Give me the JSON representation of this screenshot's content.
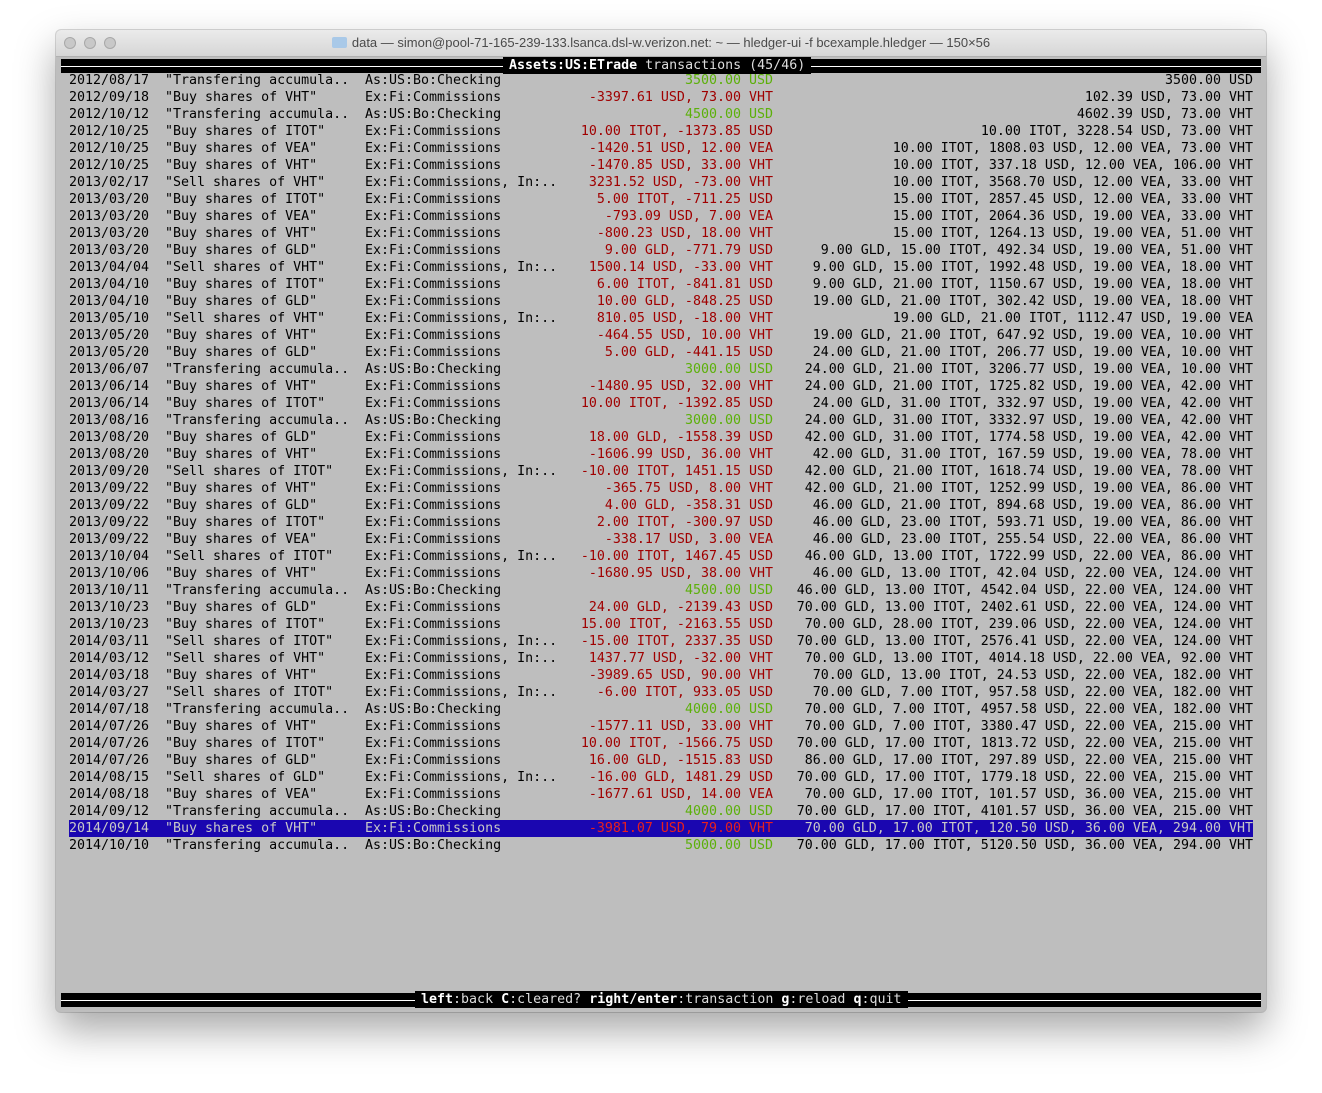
{
  "window": {
    "title": "data — simon@pool-71-165-239-133.lsanca.dsl-w.verizon.net: ~ — hledger-ui -f bcexample.hledger — 150×56"
  },
  "header": {
    "account": "Assets:US:ETrade",
    "suffix": " transactions (45/46)"
  },
  "colors": {
    "background": "#bebebe",
    "negative": "#a00000",
    "positive": "#5cb00a",
    "selection": "#1a06b0"
  },
  "selected_index": 44,
  "rows": [
    {
      "date": "2012/08/17",
      "desc": "\"Transfering accumula..",
      "acct": "As:US:Bo:Checking",
      "amt": "3500.00 USD",
      "sign": "pos",
      "bal": "3500.00 USD"
    },
    {
      "date": "2012/09/18",
      "desc": "\"Buy shares of VHT\"",
      "acct": "Ex:Fi:Commissions",
      "amt": "-3397.61 USD, 73.00 VHT",
      "sign": "neg",
      "bal": "102.39 USD, 73.00 VHT"
    },
    {
      "date": "2012/10/12",
      "desc": "\"Transfering accumula..",
      "acct": "As:US:Bo:Checking",
      "amt": "4500.00 USD",
      "sign": "pos",
      "bal": "4602.39 USD, 73.00 VHT"
    },
    {
      "date": "2012/10/25",
      "desc": "\"Buy shares of ITOT\"",
      "acct": "Ex:Fi:Commissions",
      "amt": "10.00 ITOT, -1373.85 USD",
      "sign": "neg",
      "bal": "10.00 ITOT, 3228.54 USD, 73.00 VHT"
    },
    {
      "date": "2012/10/25",
      "desc": "\"Buy shares of VEA\"",
      "acct": "Ex:Fi:Commissions",
      "amt": "-1420.51 USD, 12.00 VEA",
      "sign": "neg",
      "bal": "10.00 ITOT, 1808.03 USD, 12.00 VEA, 73.00 VHT"
    },
    {
      "date": "2012/10/25",
      "desc": "\"Buy shares of VHT\"",
      "acct": "Ex:Fi:Commissions",
      "amt": "-1470.85 USD, 33.00 VHT",
      "sign": "neg",
      "bal": "10.00 ITOT, 337.18 USD, 12.00 VEA, 106.00 VHT"
    },
    {
      "date": "2013/02/17",
      "desc": "\"Sell shares of VHT\"",
      "acct": "Ex:Fi:Commissions, In:..",
      "amt": "3231.52 USD, -73.00 VHT",
      "sign": "neg",
      "bal": "10.00 ITOT, 3568.70 USD, 12.00 VEA, 33.00 VHT"
    },
    {
      "date": "2013/03/20",
      "desc": "\"Buy shares of ITOT\"",
      "acct": "Ex:Fi:Commissions",
      "amt": "5.00 ITOT, -711.25 USD",
      "sign": "neg",
      "bal": "15.00 ITOT, 2857.45 USD, 12.00 VEA, 33.00 VHT"
    },
    {
      "date": "2013/03/20",
      "desc": "\"Buy shares of VEA\"",
      "acct": "Ex:Fi:Commissions",
      "amt": "-793.09 USD, 7.00 VEA",
      "sign": "neg",
      "bal": "15.00 ITOT, 2064.36 USD, 19.00 VEA, 33.00 VHT"
    },
    {
      "date": "2013/03/20",
      "desc": "\"Buy shares of VHT\"",
      "acct": "Ex:Fi:Commissions",
      "amt": "-800.23 USD, 18.00 VHT",
      "sign": "neg",
      "bal": "15.00 ITOT, 1264.13 USD, 19.00 VEA, 51.00 VHT"
    },
    {
      "date": "2013/03/20",
      "desc": "\"Buy shares of GLD\"",
      "acct": "Ex:Fi:Commissions",
      "amt": "9.00 GLD, -771.79 USD",
      "sign": "neg",
      "bal": "9.00 GLD, 15.00 ITOT, 492.34 USD, 19.00 VEA, 51.00 VHT"
    },
    {
      "date": "2013/04/04",
      "desc": "\"Sell shares of VHT\"",
      "acct": "Ex:Fi:Commissions, In:..",
      "amt": "1500.14 USD, -33.00 VHT",
      "sign": "neg",
      "bal": "9.00 GLD, 15.00 ITOT, 1992.48 USD, 19.00 VEA, 18.00 VHT"
    },
    {
      "date": "2013/04/10",
      "desc": "\"Buy shares of ITOT\"",
      "acct": "Ex:Fi:Commissions",
      "amt": "6.00 ITOT, -841.81 USD",
      "sign": "neg",
      "bal": "9.00 GLD, 21.00 ITOT, 1150.67 USD, 19.00 VEA, 18.00 VHT"
    },
    {
      "date": "2013/04/10",
      "desc": "\"Buy shares of GLD\"",
      "acct": "Ex:Fi:Commissions",
      "amt": "10.00 GLD, -848.25 USD",
      "sign": "neg",
      "bal": "19.00 GLD, 21.00 ITOT, 302.42 USD, 19.00 VEA, 18.00 VHT"
    },
    {
      "date": "2013/05/10",
      "desc": "\"Sell shares of VHT\"",
      "acct": "Ex:Fi:Commissions, In:..",
      "amt": "810.05 USD, -18.00 VHT",
      "sign": "neg",
      "bal": "19.00 GLD, 21.00 ITOT, 1112.47 USD, 19.00 VEA"
    },
    {
      "date": "2013/05/20",
      "desc": "\"Buy shares of VHT\"",
      "acct": "Ex:Fi:Commissions",
      "amt": "-464.55 USD, 10.00 VHT",
      "sign": "neg",
      "bal": "19.00 GLD, 21.00 ITOT, 647.92 USD, 19.00 VEA, 10.00 VHT"
    },
    {
      "date": "2013/05/20",
      "desc": "\"Buy shares of GLD\"",
      "acct": "Ex:Fi:Commissions",
      "amt": "5.00 GLD, -441.15 USD",
      "sign": "neg",
      "bal": "24.00 GLD, 21.00 ITOT, 206.77 USD, 19.00 VEA, 10.00 VHT"
    },
    {
      "date": "2013/06/07",
      "desc": "\"Transfering accumula..",
      "acct": "As:US:Bo:Checking",
      "amt": "3000.00 USD",
      "sign": "pos",
      "bal": "24.00 GLD, 21.00 ITOT, 3206.77 USD, 19.00 VEA, 10.00 VHT"
    },
    {
      "date": "2013/06/14",
      "desc": "\"Buy shares of VHT\"",
      "acct": "Ex:Fi:Commissions",
      "amt": "-1480.95 USD, 32.00 VHT",
      "sign": "neg",
      "bal": "24.00 GLD, 21.00 ITOT, 1725.82 USD, 19.00 VEA, 42.00 VHT"
    },
    {
      "date": "2013/06/14",
      "desc": "\"Buy shares of ITOT\"",
      "acct": "Ex:Fi:Commissions",
      "amt": "10.00 ITOT, -1392.85 USD",
      "sign": "neg",
      "bal": "24.00 GLD, 31.00 ITOT, 332.97 USD, 19.00 VEA, 42.00 VHT"
    },
    {
      "date": "2013/08/16",
      "desc": "\"Transfering accumula..",
      "acct": "As:US:Bo:Checking",
      "amt": "3000.00 USD",
      "sign": "pos",
      "bal": "24.00 GLD, 31.00 ITOT, 3332.97 USD, 19.00 VEA, 42.00 VHT"
    },
    {
      "date": "2013/08/20",
      "desc": "\"Buy shares of GLD\"",
      "acct": "Ex:Fi:Commissions",
      "amt": "18.00 GLD, -1558.39 USD",
      "sign": "neg",
      "bal": "42.00 GLD, 31.00 ITOT, 1774.58 USD, 19.00 VEA, 42.00 VHT"
    },
    {
      "date": "2013/08/20",
      "desc": "\"Buy shares of VHT\"",
      "acct": "Ex:Fi:Commissions",
      "amt": "-1606.99 USD, 36.00 VHT",
      "sign": "neg",
      "bal": "42.00 GLD, 31.00 ITOT, 167.59 USD, 19.00 VEA, 78.00 VHT"
    },
    {
      "date": "2013/09/20",
      "desc": "\"Sell shares of ITOT\"",
      "acct": "Ex:Fi:Commissions, In:..",
      "amt": "-10.00 ITOT, 1451.15 USD",
      "sign": "neg",
      "bal": "42.00 GLD, 21.00 ITOT, 1618.74 USD, 19.00 VEA, 78.00 VHT"
    },
    {
      "date": "2013/09/22",
      "desc": "\"Buy shares of VHT\"",
      "acct": "Ex:Fi:Commissions",
      "amt": "-365.75 USD, 8.00 VHT",
      "sign": "neg",
      "bal": "42.00 GLD, 21.00 ITOT, 1252.99 USD, 19.00 VEA, 86.00 VHT"
    },
    {
      "date": "2013/09/22",
      "desc": "\"Buy shares of GLD\"",
      "acct": "Ex:Fi:Commissions",
      "amt": "4.00 GLD, -358.31 USD",
      "sign": "neg",
      "bal": "46.00 GLD, 21.00 ITOT, 894.68 USD, 19.00 VEA, 86.00 VHT"
    },
    {
      "date": "2013/09/22",
      "desc": "\"Buy shares of ITOT\"",
      "acct": "Ex:Fi:Commissions",
      "amt": "2.00 ITOT, -300.97 USD",
      "sign": "neg",
      "bal": "46.00 GLD, 23.00 ITOT, 593.71 USD, 19.00 VEA, 86.00 VHT"
    },
    {
      "date": "2013/09/22",
      "desc": "\"Buy shares of VEA\"",
      "acct": "Ex:Fi:Commissions",
      "amt": "-338.17 USD, 3.00 VEA",
      "sign": "neg",
      "bal": "46.00 GLD, 23.00 ITOT, 255.54 USD, 22.00 VEA, 86.00 VHT"
    },
    {
      "date": "2013/10/04",
      "desc": "\"Sell shares of ITOT\"",
      "acct": "Ex:Fi:Commissions, In:..",
      "amt": "-10.00 ITOT, 1467.45 USD",
      "sign": "neg",
      "bal": "46.00 GLD, 13.00 ITOT, 1722.99 USD, 22.00 VEA, 86.00 VHT"
    },
    {
      "date": "2013/10/06",
      "desc": "\"Buy shares of VHT\"",
      "acct": "Ex:Fi:Commissions",
      "amt": "-1680.95 USD, 38.00 VHT",
      "sign": "neg",
      "bal": "46.00 GLD, 13.00 ITOT, 42.04 USD, 22.00 VEA, 124.00 VHT"
    },
    {
      "date": "2013/10/11",
      "desc": "\"Transfering accumula..",
      "acct": "As:US:Bo:Checking",
      "amt": "4500.00 USD",
      "sign": "pos",
      "bal": "46.00 GLD, 13.00 ITOT, 4542.04 USD, 22.00 VEA, 124.00 VHT"
    },
    {
      "date": "2013/10/23",
      "desc": "\"Buy shares of GLD\"",
      "acct": "Ex:Fi:Commissions",
      "amt": "24.00 GLD, -2139.43 USD",
      "sign": "neg",
      "bal": "70.00 GLD, 13.00 ITOT, 2402.61 USD, 22.00 VEA, 124.00 VHT"
    },
    {
      "date": "2013/10/23",
      "desc": "\"Buy shares of ITOT\"",
      "acct": "Ex:Fi:Commissions",
      "amt": "15.00 ITOT, -2163.55 USD",
      "sign": "neg",
      "bal": "70.00 GLD, 28.00 ITOT, 239.06 USD, 22.00 VEA, 124.00 VHT"
    },
    {
      "date": "2014/03/11",
      "desc": "\"Sell shares of ITOT\"",
      "acct": "Ex:Fi:Commissions, In:..",
      "amt": "-15.00 ITOT, 2337.35 USD",
      "sign": "neg",
      "bal": "70.00 GLD, 13.00 ITOT, 2576.41 USD, 22.00 VEA, 124.00 VHT"
    },
    {
      "date": "2014/03/12",
      "desc": "\"Sell shares of VHT\"",
      "acct": "Ex:Fi:Commissions, In:..",
      "amt": "1437.77 USD, -32.00 VHT",
      "sign": "neg",
      "bal": "70.00 GLD, 13.00 ITOT, 4014.18 USD, 22.00 VEA, 92.00 VHT"
    },
    {
      "date": "2014/03/18",
      "desc": "\"Buy shares of VHT\"",
      "acct": "Ex:Fi:Commissions",
      "amt": "-3989.65 USD, 90.00 VHT",
      "sign": "neg",
      "bal": "70.00 GLD, 13.00 ITOT, 24.53 USD, 22.00 VEA, 182.00 VHT"
    },
    {
      "date": "2014/03/27",
      "desc": "\"Sell shares of ITOT\"",
      "acct": "Ex:Fi:Commissions, In:..",
      "amt": "-6.00 ITOT, 933.05 USD",
      "sign": "neg",
      "bal": "70.00 GLD, 7.00 ITOT, 957.58 USD, 22.00 VEA, 182.00 VHT"
    },
    {
      "date": "2014/07/18",
      "desc": "\"Transfering accumula..",
      "acct": "As:US:Bo:Checking",
      "amt": "4000.00 USD",
      "sign": "pos",
      "bal": "70.00 GLD, 7.00 ITOT, 4957.58 USD, 22.00 VEA, 182.00 VHT"
    },
    {
      "date": "2014/07/26",
      "desc": "\"Buy shares of VHT\"",
      "acct": "Ex:Fi:Commissions",
      "amt": "-1577.11 USD, 33.00 VHT",
      "sign": "neg",
      "bal": "70.00 GLD, 7.00 ITOT, 3380.47 USD, 22.00 VEA, 215.00 VHT"
    },
    {
      "date": "2014/07/26",
      "desc": "\"Buy shares of ITOT\"",
      "acct": "Ex:Fi:Commissions",
      "amt": "10.00 ITOT, -1566.75 USD",
      "sign": "neg",
      "bal": "70.00 GLD, 17.00 ITOT, 1813.72 USD, 22.00 VEA, 215.00 VHT"
    },
    {
      "date": "2014/07/26",
      "desc": "\"Buy shares of GLD\"",
      "acct": "Ex:Fi:Commissions",
      "amt": "16.00 GLD, -1515.83 USD",
      "sign": "neg",
      "bal": "86.00 GLD, 17.00 ITOT, 297.89 USD, 22.00 VEA, 215.00 VHT"
    },
    {
      "date": "2014/08/15",
      "desc": "\"Sell shares of GLD\"",
      "acct": "Ex:Fi:Commissions, In:..",
      "amt": "-16.00 GLD, 1481.29 USD",
      "sign": "neg",
      "bal": "70.00 GLD, 17.00 ITOT, 1779.18 USD, 22.00 VEA, 215.00 VHT"
    },
    {
      "date": "2014/08/18",
      "desc": "\"Buy shares of VEA\"",
      "acct": "Ex:Fi:Commissions",
      "amt": "-1677.61 USD, 14.00 VEA",
      "sign": "neg",
      "bal": "70.00 GLD, 17.00 ITOT, 101.57 USD, 36.00 VEA, 215.00 VHT"
    },
    {
      "date": "2014/09/12",
      "desc": "\"Transfering accumula..",
      "acct": "As:US:Bo:Checking",
      "amt": "4000.00 USD",
      "sign": "pos",
      "bal": "70.00 GLD, 17.00 ITOT, 4101.57 USD, 36.00 VEA, 215.00 VHT"
    },
    {
      "date": "2014/09/14",
      "desc": "\"Buy shares of VHT\"",
      "acct": "Ex:Fi:Commissions",
      "amt": "-3981.07 USD, 79.00 VHT",
      "sign": "neg",
      "bal": "70.00 GLD, 17.00 ITOT, 120.50 USD, 36.00 VEA, 294.00 VHT"
    },
    {
      "date": "2014/10/10",
      "desc": "\"Transfering accumula..",
      "acct": "As:US:Bo:Checking",
      "amt": "5000.00 USD",
      "sign": "pos",
      "bal": "70.00 GLD, 17.00 ITOT, 5120.50 USD, 36.00 VEA, 294.00 VHT"
    }
  ],
  "footer": {
    "keys": [
      {
        "key": "left",
        "action": "back"
      },
      {
        "key": "C",
        "action": "cleared?"
      },
      {
        "key": "right/enter",
        "action": "transaction"
      },
      {
        "key": "g",
        "action": "reload"
      },
      {
        "key": "q",
        "action": "quit"
      }
    ]
  }
}
